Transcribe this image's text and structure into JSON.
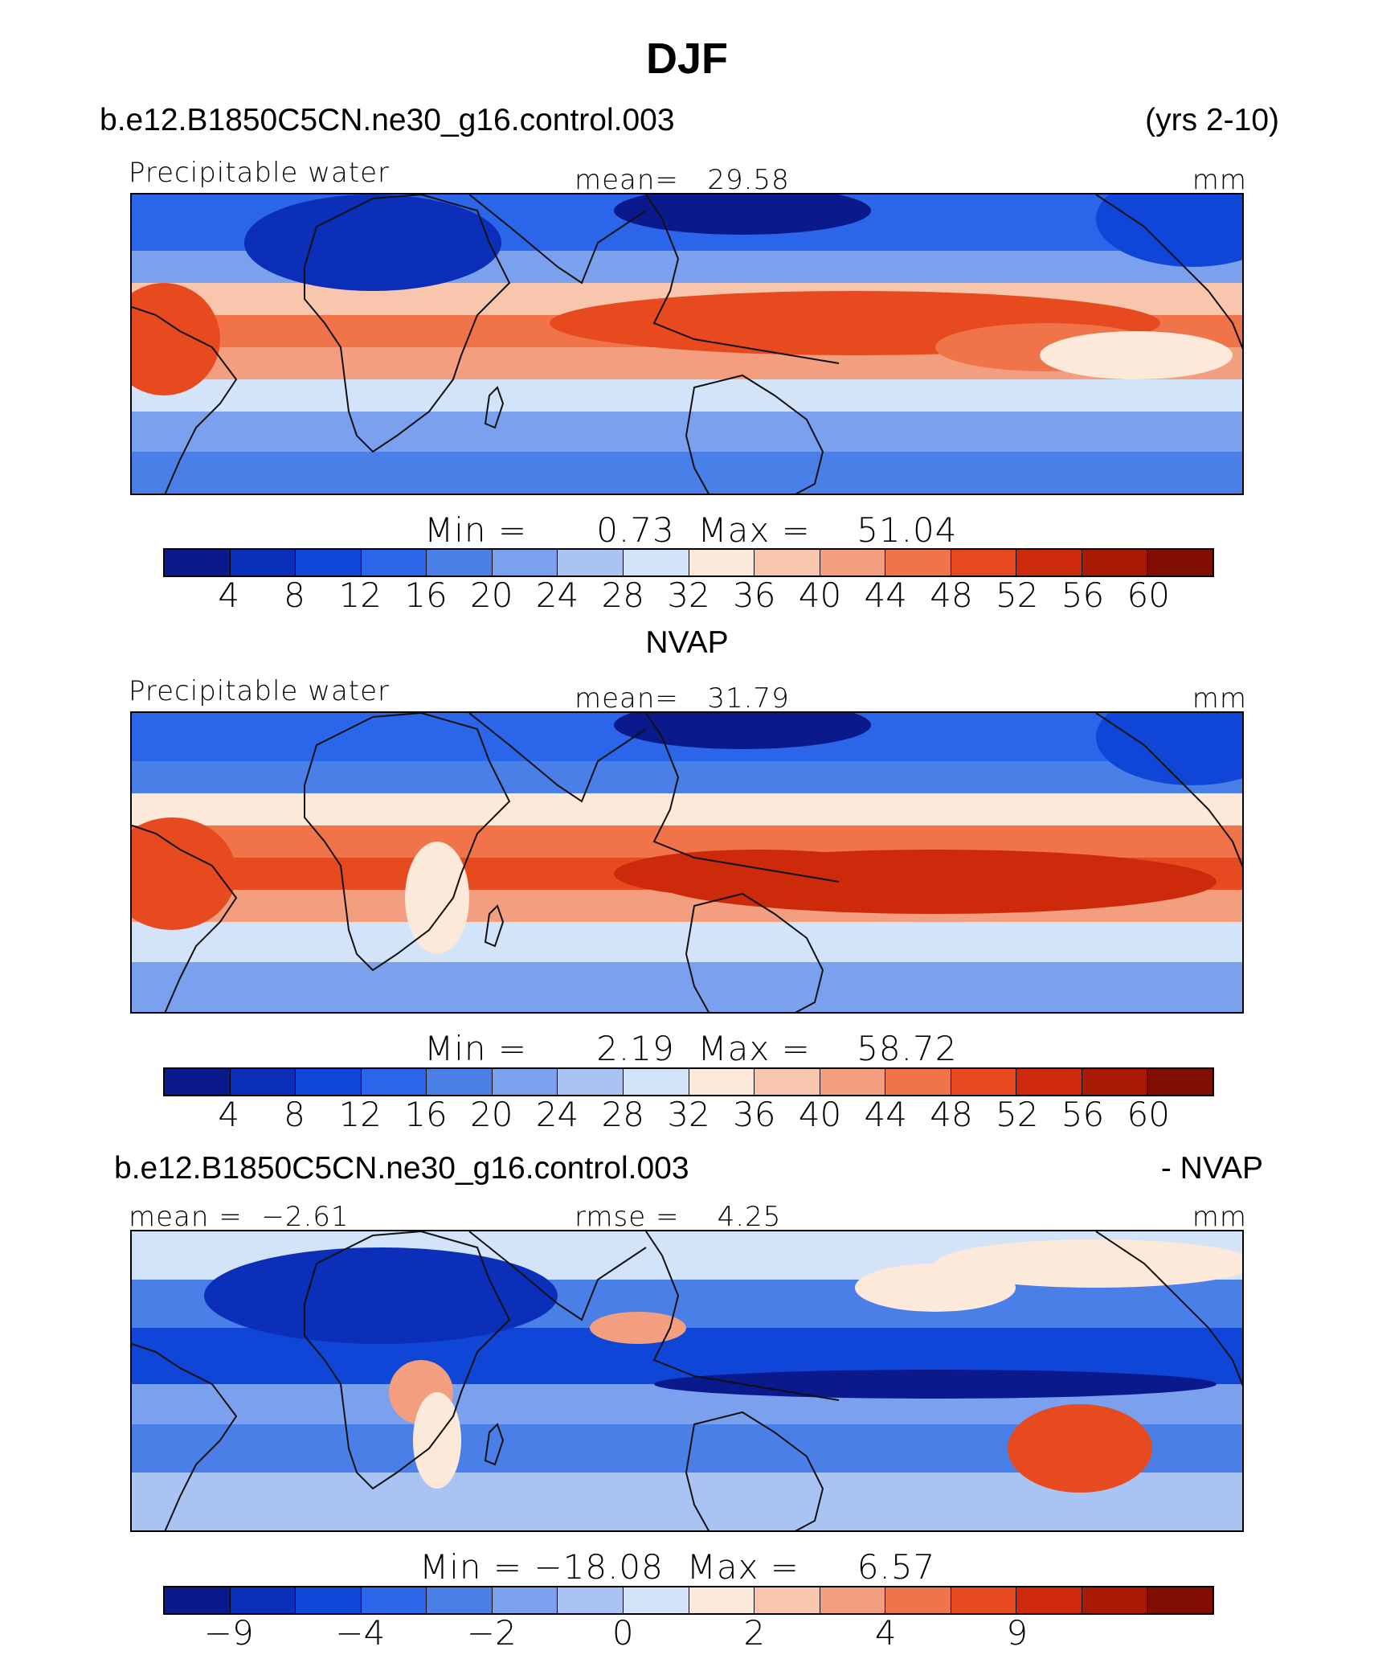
{
  "title": "DJF",
  "case_name": "b.e12.B1850C5CN.ne30_g16.control.003",
  "years": "(yrs 2-10)",
  "obs_name": "NVAP",
  "diff_suffix": "- NVAP",
  "palette": [
    "#0a1a8c",
    "#0b2fb8",
    "#0f46d8",
    "#2b66ea",
    "#4a7fe8",
    "#7aa0ee",
    "#a9c4f3",
    "#d3e3f8",
    "#fde9da",
    "#f8c5ad",
    "#f29e7f",
    "#f07349",
    "#e64a1e",
    "#cc2a0a",
    "#a81a04",
    "#800e02"
  ],
  "chart_data": [
    {
      "type": "heatmap",
      "id": "model",
      "variable": "Precipitable water",
      "units": "mm",
      "mean_label": "mean=",
      "mean": "29.58",
      "min_label": "Min =",
      "min": "0.73",
      "max_label": "Max =",
      "max": "51.04",
      "levels": [
        "4",
        "8",
        "12",
        "16",
        "20",
        "24",
        "28",
        "32",
        "36",
        "40",
        "44",
        "48",
        "52",
        "56",
        "60"
      ]
    },
    {
      "type": "heatmap",
      "id": "obs",
      "variable": "Precipitable water",
      "units": "mm",
      "mean_label": "mean=",
      "mean": "31.79",
      "min_label": "Min =",
      "min": "2.19",
      "max_label": "Max =",
      "max": "58.72",
      "levels": [
        "4",
        "8",
        "12",
        "16",
        "20",
        "24",
        "28",
        "32",
        "36",
        "40",
        "44",
        "48",
        "52",
        "56",
        "60"
      ]
    },
    {
      "type": "heatmap",
      "id": "diff",
      "units": "mm",
      "mean_label": "mean =",
      "mean": "−2.61",
      "rmse_label": "rmse =",
      "rmse": "4.25",
      "min_label": "Min =",
      "min": "−18.08",
      "max_label": "Max =",
      "max": "6.57",
      "levels": [
        "−9",
        "",
        "−4",
        "",
        "−2",
        "",
        "0",
        "",
        "2",
        "",
        "4",
        "",
        "9",
        "",
        ""
      ]
    }
  ]
}
